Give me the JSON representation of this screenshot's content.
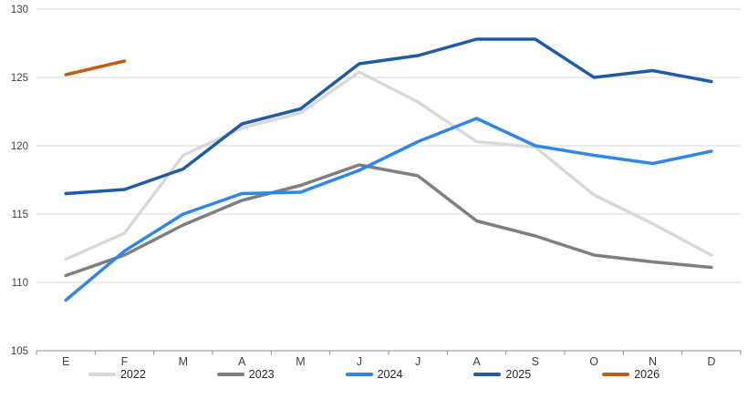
{
  "chart_data": {
    "type": "line",
    "title": "",
    "xlabel": "",
    "ylabel": "",
    "categories": [
      "E",
      "F",
      "M",
      "A",
      "M",
      "J",
      "J",
      "A",
      "S",
      "O",
      "N",
      "D"
    ],
    "y_ticks": [
      105,
      110,
      115,
      120,
      125,
      130
    ],
    "ylim": [
      105,
      130
    ],
    "grid": "horizontal",
    "grid_color": "#D9D9D9",
    "axis_color": "#8C8C8C",
    "tick_label_color": "#404040",
    "legend_position": "bottom",
    "series": [
      {
        "name": "2022",
        "color": "#D9D9D9",
        "values": [
          111.7,
          113.6,
          119.3,
          121.3,
          122.4,
          125.4,
          123.2,
          120.3,
          119.9,
          116.4,
          114.3,
          112.0
        ]
      },
      {
        "name": "2023",
        "color": "#7F7F7F",
        "values": [
          110.5,
          112.0,
          114.2,
          116.0,
          117.1,
          118.6,
          117.8,
          114.5,
          113.4,
          112.0,
          111.5,
          111.1
        ]
      },
      {
        "name": "2024",
        "color": "#2F87E7",
        "values": [
          108.7,
          112.3,
          115.0,
          116.5,
          116.6,
          118.2,
          120.3,
          122.0,
          120.0,
          119.3,
          118.7,
          119.6
        ]
      },
      {
        "name": "2025",
        "color": "#1F5BA7",
        "values": [
          116.5,
          116.8,
          118.3,
          121.6,
          122.7,
          126.0,
          126.6,
          127.8,
          127.8,
          125.0,
          125.5,
          124.7
        ]
      },
      {
        "name": "2026",
        "color": "#C55A11",
        "values": [
          125.2,
          126.2,
          null,
          null,
          null,
          null,
          null,
          null,
          null,
          null,
          null,
          null
        ]
      }
    ]
  }
}
